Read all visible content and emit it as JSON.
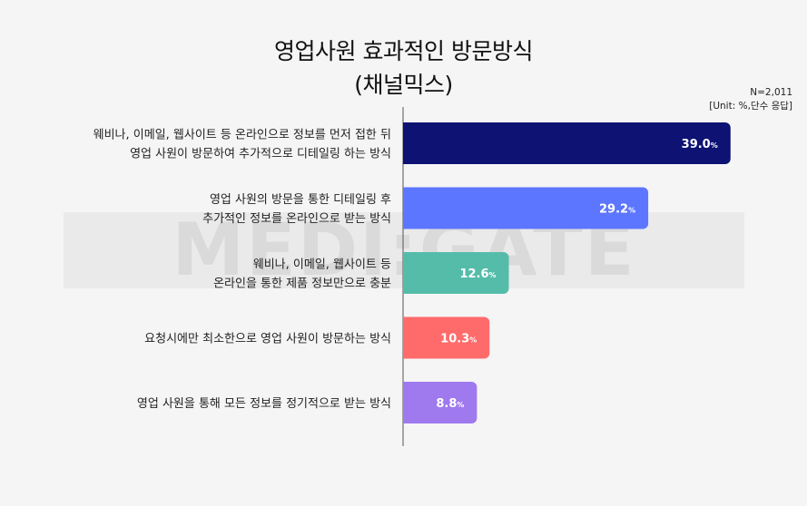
{
  "chart_data": {
    "type": "bar",
    "orientation": "horizontal",
    "title": "영업사원 효과적인 방문방식\n(채널믹스)",
    "title_lines": [
      "영업사원 효과적인 방문방식",
      "(채널믹스)"
    ],
    "sample_note": "N=2,011",
    "unit_note": "[Unit: %,단수 응답]",
    "unit_suffix": "%",
    "categories": [
      [
        "웨비나, 이메일, 웹사이트 등 온라인으로 정보를 먼저 접한 뒤",
        "영업 사원이 방문하여 추가적으로 디테일링 하는 방식"
      ],
      [
        "영업 사원의 방문을 통한 디테일링 후",
        "추가적인 정보를 온라인으로 받는 방식"
      ],
      [
        "웨비나, 이메일, 웹사이트 등",
        "온라인을 통한 제품 정보만으로 충분"
      ],
      [
        "요청시에만 최소한으로 영업 사원이 방문하는 방식"
      ],
      [
        "영업 사원을 통해 모든 정보를 정기적으로 받는 방식"
      ]
    ],
    "values": [
      39.0,
      29.2,
      12.6,
      10.3,
      8.8
    ],
    "value_labels": [
      "39.0",
      "29.2",
      "12.6",
      "10.3",
      "8.8"
    ],
    "colors": [
      "#0d1273",
      "#5c76ff",
      "#55bcaa",
      "#ff6b6b",
      "#9f79ee"
    ],
    "xlim": [
      0,
      40
    ],
    "grid": false,
    "legend": "none"
  },
  "watermark": "MEDI:GATE NEWS"
}
